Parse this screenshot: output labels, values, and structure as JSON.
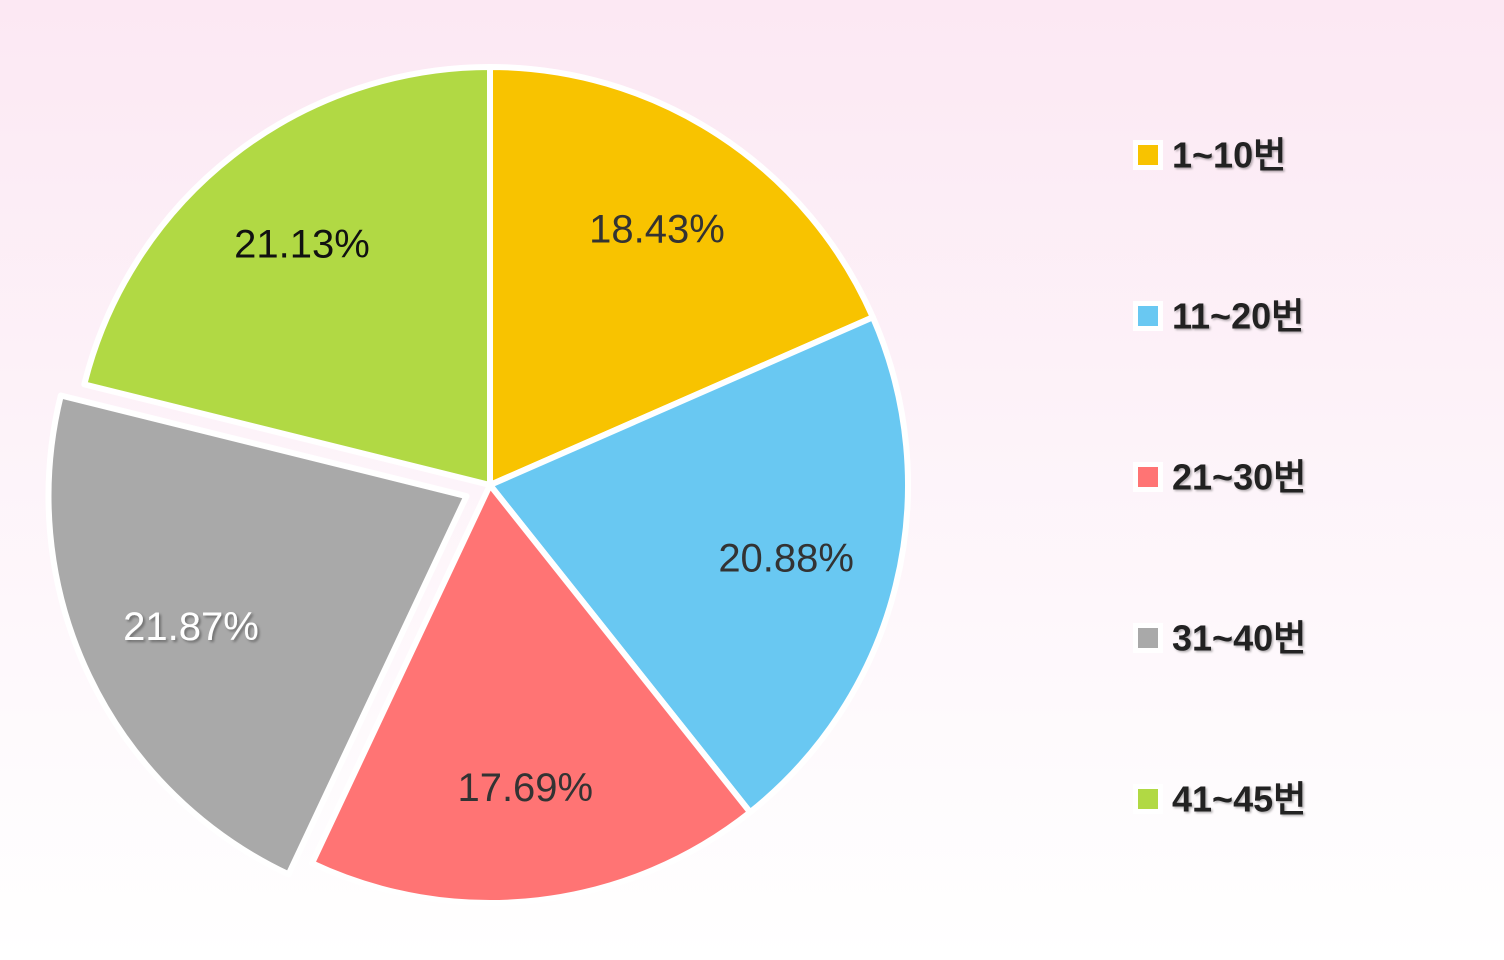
{
  "chart_data": {
    "type": "pie",
    "categories": [
      "1~10번",
      "11~20번",
      "21~30번",
      "31~40번",
      "41~45번"
    ],
    "values": [
      18.43,
      20.88,
      17.69,
      21.87,
      21.13
    ],
    "data_labels": [
      "18.43%",
      "20.88%",
      "17.69%",
      "21.87%",
      "21.13%"
    ],
    "colors": [
      "#f8c300",
      "#69c8f2",
      "#ff7474",
      "#a9a9a9",
      "#b1d944"
    ],
    "label_colors": [
      "#333333",
      "#333333",
      "#333333",
      "#ffffff",
      "#111111"
    ],
    "exploded": "31~40번",
    "start_angle": "12 o'clock, clockwise",
    "legend": {
      "position": "right"
    },
    "title": ""
  }
}
